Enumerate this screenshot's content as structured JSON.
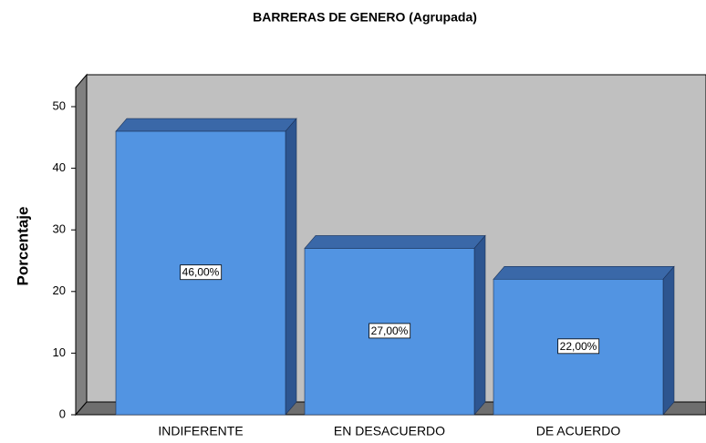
{
  "chart_data": {
    "type": "bar3d",
    "title": "BARRERAS DE GENERO (Agrupada)",
    "y_label": "Porcentaje",
    "categories": [
      "INDIFERENTE",
      "EN DESACUERDO",
      "DE ACUERDO"
    ],
    "values": [
      46,
      27,
      22
    ],
    "value_labels": [
      "46,00%",
      "27,00%",
      "22,00%"
    ],
    "color": "#5294e2",
    "ylim": [
      0,
      50
    ],
    "yticks": [
      0,
      10,
      20,
      30,
      40,
      50
    ],
    "grid": false
  }
}
